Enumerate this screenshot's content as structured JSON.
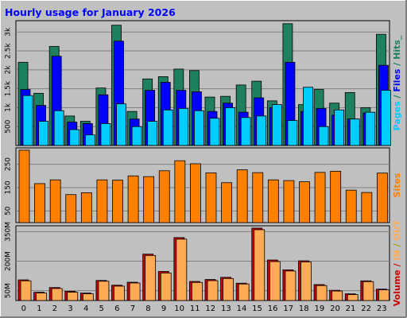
{
  "chart_data": {
    "type": "bar",
    "title": "Hourly usage for January 2026",
    "categories": [
      "0",
      "1",
      "2",
      "3",
      "4",
      "5",
      "6",
      "7",
      "8",
      "9",
      "10",
      "11",
      "12",
      "13",
      "14",
      "15",
      "16",
      "17",
      "18",
      "19",
      "20",
      "21",
      "22",
      "23"
    ],
    "panels": [
      {
        "id": "requests",
        "ylim": [
          0,
          3300
        ],
        "ticks": [
          {
            "v": 500,
            "label": "500"
          },
          {
            "v": 1000,
            "label": "1k"
          },
          {
            "v": 1500,
            "label": "1.5k"
          },
          {
            "v": 2000,
            "label": "2k"
          },
          {
            "v": 2500,
            "label": "2.5k"
          },
          {
            "v": 3000,
            "label": "3k"
          }
        ],
        "series": [
          {
            "name": "Hits",
            "color": "#1f8060",
            "values": [
              2200,
              1380,
              2620,
              780,
              640,
              1520,
              3180,
              900,
              1760,
              1820,
              2020,
              1980,
              1280,
              1300,
              1600,
              1700,
              1180,
              3220,
              1080,
              1480,
              1120,
              1400,
              1000,
              2940
            ]
          },
          {
            "name": "Files",
            "color": "#0000ff",
            "values": [
              1480,
              1060,
              2360,
              620,
              580,
              1340,
              2760,
              700,
              1460,
              1670,
              1460,
              1420,
              900,
              1120,
              880,
              1260,
              1000,
              2200,
              900,
              980,
              800,
              700,
              860,
              2120
            ]
          },
          {
            "name": "Pages",
            "color": "#00ccff",
            "values": [
              1320,
              640,
              920,
              420,
              280,
              580,
              1100,
              500,
              640,
              940,
              980,
              920,
              720,
              1000,
              740,
              780,
              1080,
              660,
              1540,
              500,
              940,
              700,
              880,
              1460
            ]
          }
        ]
      },
      {
        "id": "sites",
        "ylim": [
          0,
          320
        ],
        "ticks": [
          {
            "v": 50,
            "label": "50"
          },
          {
            "v": 150,
            "label": "150"
          },
          {
            "v": 250,
            "label": "250"
          }
        ],
        "series": [
          {
            "name": "Sites",
            "color": "#ff8000",
            "values": [
              310,
              167,
              183,
              120,
              128,
              183,
              182,
              200,
              197,
              222,
              265,
              252,
              213,
              171,
              226,
              214,
              183,
              180,
              175,
              215,
              220,
              139,
              129,
              212
            ]
          }
        ]
      },
      {
        "id": "volume",
        "ylim": [
          0,
          380
        ],
        "ticks": [
          {
            "v": 50,
            "label": "50M"
          },
          {
            "v": 200,
            "label": "200M"
          },
          {
            "v": 350,
            "label": "350M"
          }
        ],
        "series": [
          {
            "name": "Volume",
            "color": "#cc0000",
            "values": [
              105,
              42,
              66,
              47,
              38,
              102,
              78,
              93,
              236,
              148,
              320,
              97,
              107,
              118,
              88,
              368,
              206,
              156,
              202,
              81,
              52,
              34,
              100,
              58
            ]
          },
          {
            "name": "Volume",
            "color": "#ffaa55",
            "values": [
              100,
              38,
              61,
              42,
              34,
              98,
              73,
              89,
              229,
              140,
              312,
              92,
              101,
              112,
              84,
              360,
              198,
              150,
              196,
              76,
              48,
              30,
              96,
              54
            ]
          }
        ]
      }
    ],
    "right_labels": [
      {
        "panel": "requests",
        "parts": [
          {
            "text": "Pages",
            "color": "#00ccff"
          },
          {
            "text": " / ",
            "color": "#008060"
          },
          {
            "text": "Files",
            "color": "#0000ff"
          },
          {
            "text": " / ",
            "color": "#008060"
          },
          {
            "text": "Hits_",
            "color": "#1f8060"
          }
        ]
      },
      {
        "panel": "sites",
        "parts": [
          {
            "text": "Sites",
            "color": "#ff8000"
          }
        ]
      },
      {
        "panel": "volume",
        "parts": [
          {
            "text": "Volume",
            "color": "#cc0000"
          },
          {
            "text": " / ",
            "color": "#cc0000"
          },
          {
            "text": "IN",
            "color": "#ffaa55"
          },
          {
            "text": " / ",
            "color": "#a0a000"
          },
          {
            "text": "OUT",
            "color": "#ffaa55"
          }
        ]
      }
    ],
    "colors": {
      "background": "#c0c0c0",
      "plot": "#c0c0c0",
      "grid": "#808080",
      "title": "#0000ff"
    }
  }
}
